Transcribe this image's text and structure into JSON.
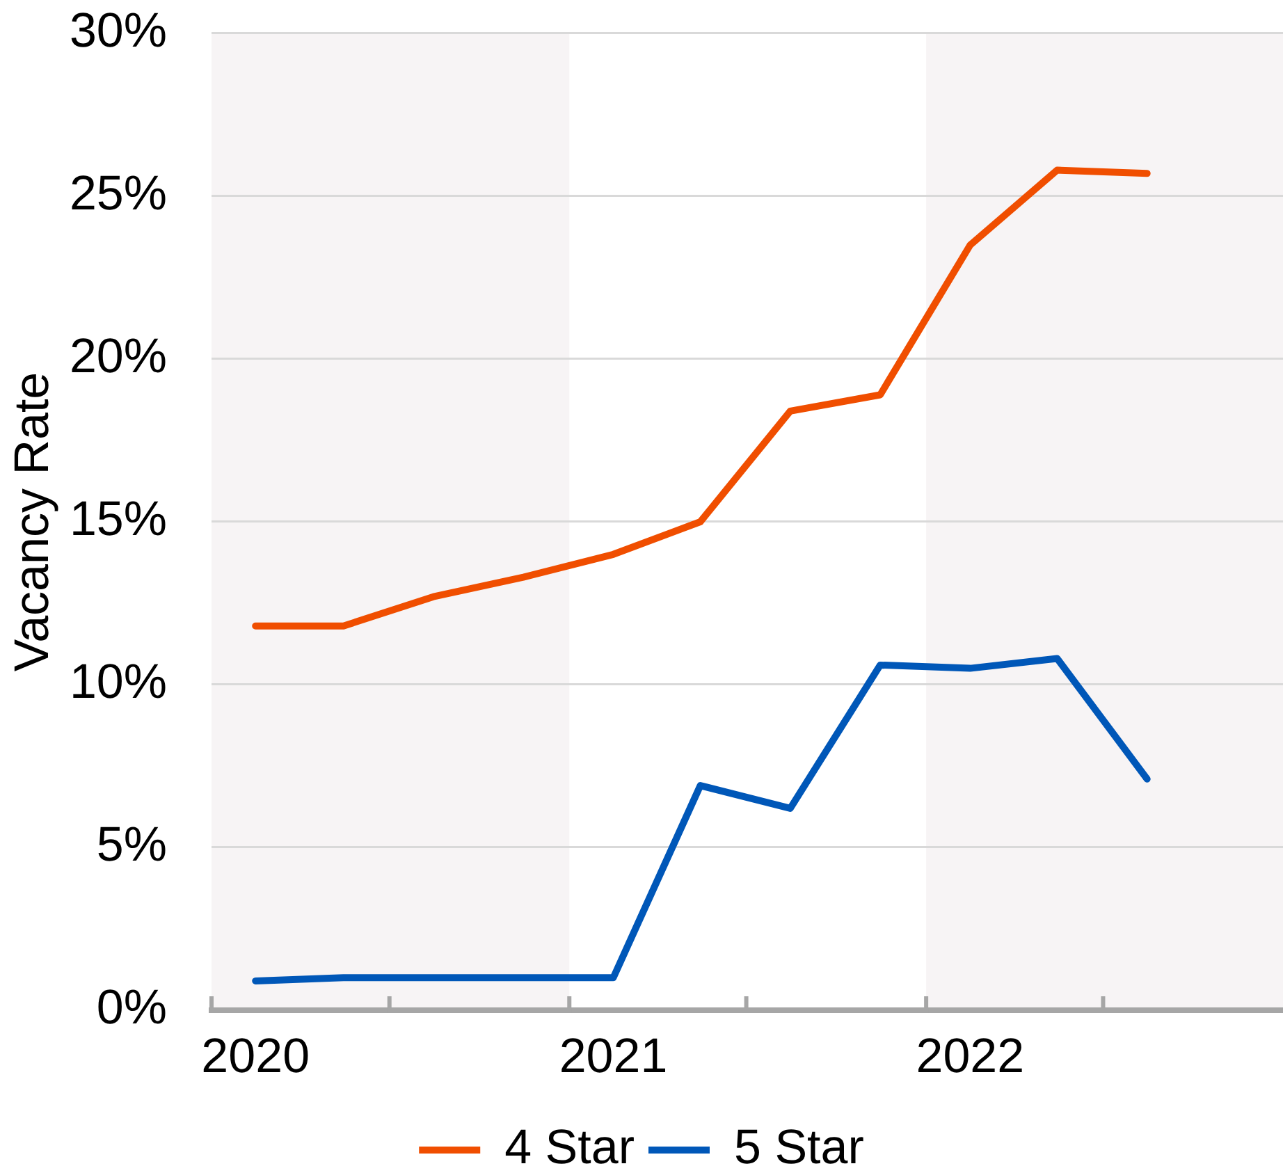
{
  "chart_data": {
    "type": "line",
    "ylabel": "Vacancy Rate",
    "x": [
      "2020-02-15",
      "2020-05-15",
      "2020-08-15",
      "2020-11-15",
      "2021-02-15",
      "2021-05-15",
      "2021-08-15",
      "2021-11-15",
      "2022-02-15",
      "2022-05-15",
      "2022-08-15"
    ],
    "series": [
      {
        "name": "4 Star",
        "color": "#f04e00",
        "values": [
          11.8,
          11.8,
          12.7,
          13.3,
          14.0,
          15.0,
          18.4,
          18.9,
          23.5,
          25.8,
          25.7
        ]
      },
      {
        "name": "5 Star",
        "color": "#0057b8",
        "values": [
          0.9,
          1.0,
          1.0,
          1.0,
          1.0,
          6.9,
          6.2,
          10.6,
          10.5,
          10.8,
          7.1
        ]
      }
    ],
    "xlim": [
      "2020-01-01",
      "2023-01-01"
    ],
    "xticks": [
      {
        "value": "2020-01-01",
        "label": null
      },
      {
        "value": "2020-02-15",
        "label": "2020"
      },
      {
        "value": "2020-07-01",
        "label": null
      },
      {
        "value": "2021-01-01",
        "label": null
      },
      {
        "value": "2021-02-15",
        "label": "2021"
      },
      {
        "value": "2021-07-01",
        "label": null
      },
      {
        "value": "2022-01-01",
        "label": null
      },
      {
        "value": "2022-02-15",
        "label": "2022"
      },
      {
        "value": "2022-07-01",
        "label": null
      }
    ],
    "ylim": [
      0,
      30
    ],
    "yticks": [
      {
        "value": 0,
        "label": "0%"
      },
      {
        "value": 5,
        "label": "5%"
      },
      {
        "value": 10,
        "label": "10%"
      },
      {
        "value": 15,
        "label": "15%"
      },
      {
        "value": 20,
        "label": "20%"
      },
      {
        "value": 25,
        "label": "25%"
      },
      {
        "value": 30,
        "label": "30%"
      }
    ],
    "bands": [
      {
        "axis": "x",
        "from": "2020-01-01",
        "to": "2021-01-01",
        "color": "#f7f4f5"
      },
      {
        "axis": "x",
        "from": "2022-01-01",
        "to": "2023-01-01",
        "color": "#f7f4f5"
      }
    ],
    "grid": "y",
    "legend": "bottom",
    "marker": "none",
    "line_style": "solid"
  }
}
